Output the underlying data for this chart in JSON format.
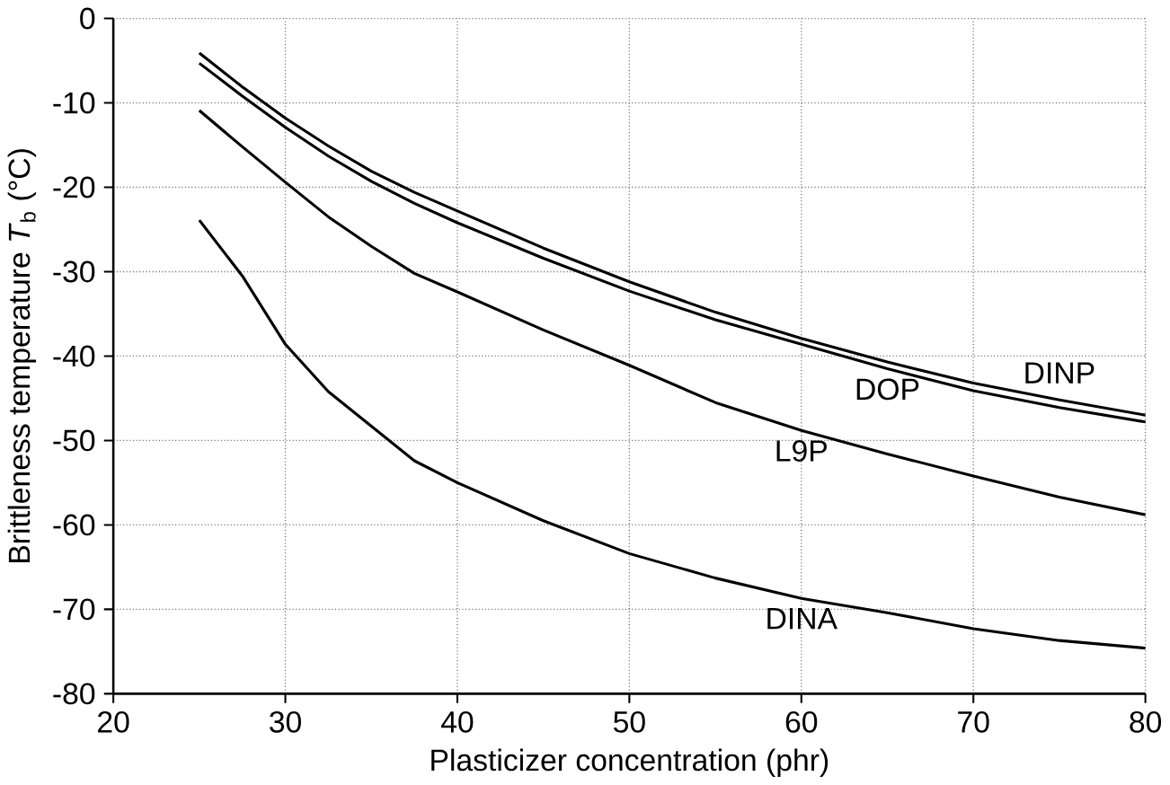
{
  "chart_data": {
    "type": "line",
    "xlabel": "Plasticizer concentration (phr)",
    "ylabel": "Brittleness temperature *T*$_{b}$ (°C)",
    "x": [
      25,
      27.5,
      30,
      32.5,
      35,
      37.5,
      40,
      45,
      50,
      55,
      60,
      65,
      70,
      75,
      80
    ],
    "series": [
      {
        "name": "DINP",
        "color": "#000000",
        "values": [
          -4.1,
          -8.1,
          -11.8,
          -15.1,
          -18.1,
          -20.6,
          -22.8,
          -27.2,
          -31.2,
          -34.8,
          -37.9,
          -40.7,
          -43.2,
          -45.2,
          -47.0
        ]
      },
      {
        "name": "DOP",
        "color": "#000000",
        "values": [
          -5.3,
          -9.2,
          -12.9,
          -16.3,
          -19.3,
          -21.9,
          -24.2,
          -28.4,
          -32.3,
          -35.7,
          -38.6,
          -41.5,
          -44.1,
          -46.1,
          -47.8
        ]
      },
      {
        "name": "L9P",
        "color": "#000000",
        "values": [
          -10.9,
          -15.2,
          -19.4,
          -23.5,
          -27.0,
          -30.2,
          -32.4,
          -36.9,
          -41.1,
          -45.5,
          -48.8,
          -51.6,
          -54.2,
          -56.7,
          -58.8
        ]
      },
      {
        "name": "DINA",
        "color": "#000000",
        "values": [
          -23.9,
          -30.5,
          -38.6,
          -44.2,
          -48.3,
          -52.4,
          -55.0,
          -59.5,
          -63.4,
          -66.3,
          -68.7,
          -70.4,
          -72.3,
          -73.7,
          -74.6
        ]
      }
    ],
    "xlim": [
      20,
      80
    ],
    "ylim": [
      -80,
      0
    ],
    "xticks": [
      20,
      30,
      40,
      50,
      60,
      70,
      80
    ],
    "yticks": [
      -80,
      -70,
      -60,
      -50,
      -40,
      -30,
      -20,
      -10,
      0
    ],
    "grid": true,
    "line_style": "solid",
    "marker": "none"
  }
}
